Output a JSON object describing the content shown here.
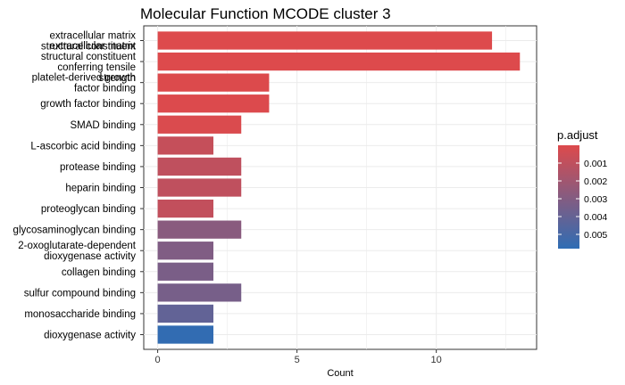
{
  "chart_data": {
    "type": "bar",
    "orientation": "horizontal",
    "title": "Molecular Function MCODE cluster 3",
    "xlabel": "Count",
    "ylabel": "",
    "xlim": [
      -0.5,
      13.6
    ],
    "xticks": [
      0,
      5,
      10
    ],
    "grid": true,
    "legend_position": "right",
    "categories": [
      "extracellular matrix structural constituent",
      "extracellular matrix structural constituent conferring tensile strength",
      "platelet-derived growth factor binding",
      "growth factor binding",
      "SMAD binding",
      "L-ascorbic acid binding",
      "protease binding",
      "heparin binding",
      "proteoglycan binding",
      "glycosaminoglycan binding",
      "2-oxoglutarate-dependent dioxygenase activity",
      "collagen binding",
      "sulfur compound binding",
      "monosaccharide binding",
      "dioxygenase activity"
    ],
    "values": [
      12,
      13,
      4,
      4,
      3,
      2,
      3,
      3,
      2,
      3,
      2,
      2,
      3,
      2,
      2
    ],
    "p_adjust": [
      1e-05,
      1e-05,
      2e-05,
      3e-05,
      0.0001,
      0.0008,
      0.001,
      0.001,
      0.0009,
      0.0028,
      0.0031,
      0.0033,
      0.0034,
      0.0041,
      0.0057
    ],
    "colors": {
      "low": "#DD4A4C",
      "high": "#2F6DB4"
    },
    "legend": {
      "title": "p.adjust",
      "range": [
        0,
        0.0058
      ],
      "ticks": [
        0.001,
        0.002,
        0.003,
        0.004,
        0.005
      ],
      "tick_labels": [
        "0.001",
        "0.002",
        "0.003",
        "0.004",
        "0.005"
      ]
    }
  }
}
